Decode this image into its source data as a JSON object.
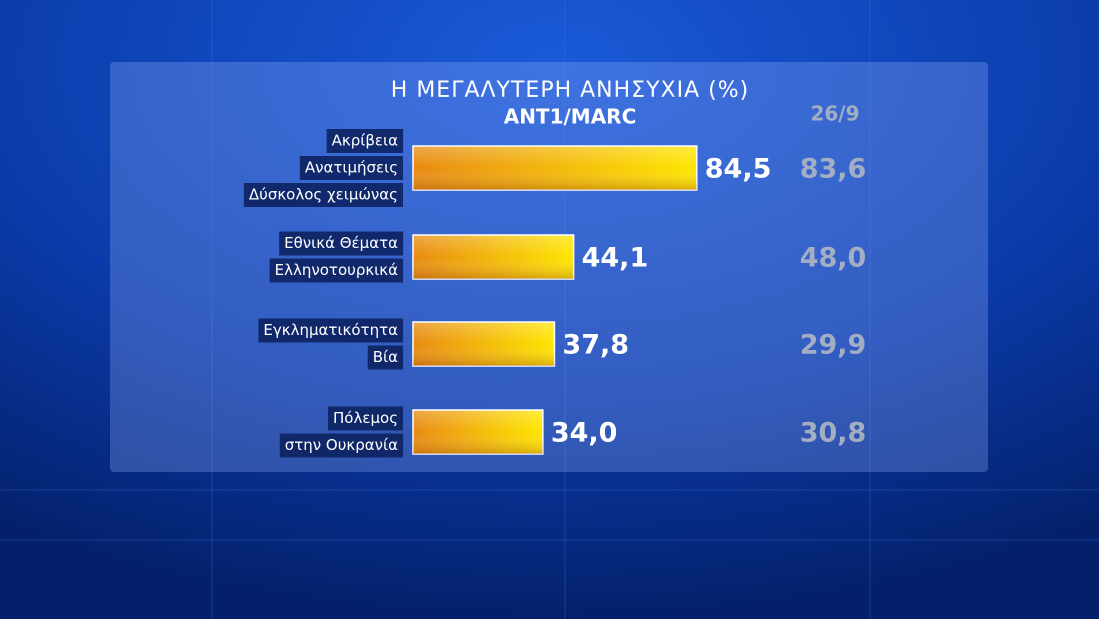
{
  "chart_data": {
    "type": "bar",
    "orientation": "horizontal",
    "title": "Η ΜΕΓΑΛΥΤΕΡΗ ΑΝΗΣΥΧΙΑ (%)",
    "subtitle": "ANT1/MARC",
    "categories": [
      [
        "Ακρίβεια",
        "Ανατιμήσεις",
        "Δύσκολος χειμώνας"
      ],
      [
        "Εθνικά Θέματα",
        "Ελληνοτουρκικά"
      ],
      [
        "Εγκληματικότητα",
        "Βία"
      ],
      [
        "Πόλεμος",
        "στην Ουκρανία"
      ]
    ],
    "series": [
      {
        "color": "#f5b800",
        "values": [
          84.5,
          44.1,
          37.8,
          34.0
        ],
        "value_labels": [
          "84,5",
          "44,1",
          "37,8",
          "34,0"
        ]
      },
      {
        "name": "26/9",
        "color": "#a3adc4",
        "values": [
          83.6,
          48.0,
          29.9,
          30.8
        ],
        "value_labels": [
          "83,6",
          "48,0",
          "29,9",
          "30,8"
        ]
      }
    ],
    "xlim": [
      -8.6,
      100
    ]
  }
}
